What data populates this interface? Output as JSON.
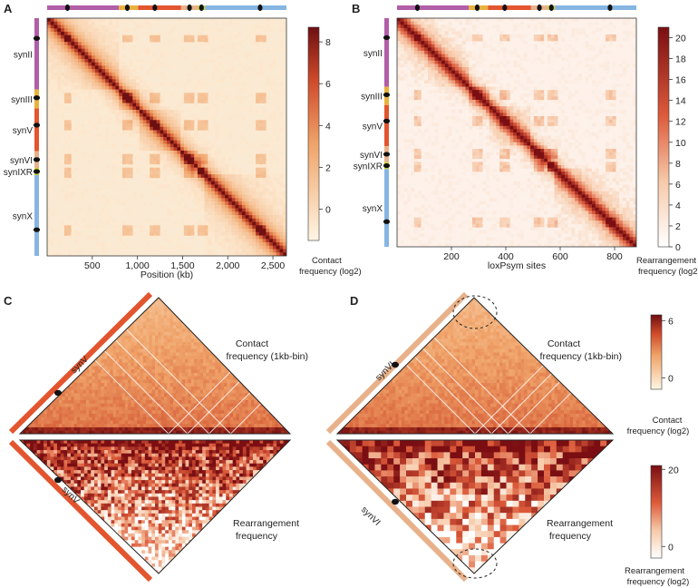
{
  "colors": {
    "synII": "#b15ea8",
    "synIII": "#e8b23c",
    "synV": "#e2552f",
    "synVI": "#e8b18a",
    "synIXR": "#c7d22f",
    "synX": "#85b6e2",
    "heat_low": "#fff4df",
    "heat_mid": "#ec8a4c",
    "heat_high": "#8c1414"
  },
  "chart_data": [
    {
      "panel": "A",
      "type": "heatmap",
      "xlabel": "Position (kb)",
      "x_ticks": [
        "500",
        "1,000",
        "1,500",
        "2,000",
        "2,500"
      ],
      "x_tick_values": [
        500,
        1000,
        1500,
        2000,
        2500
      ],
      "xlim": [
        0,
        2650
      ],
      "chromosomes": [
        "synII",
        "synIII",
        "synV",
        "synVI",
        "synIXR",
        "synX"
      ],
      "colorbar_label": "Contact frequency (log2)",
      "colorbar_ticks": [
        "8",
        "6",
        "4",
        "2",
        "0"
      ],
      "colorbar_values": [
        8,
        6,
        4,
        2,
        0
      ],
      "colorbar_range": [
        -1.5,
        8.7
      ]
    },
    {
      "panel": "B",
      "type": "heatmap",
      "xlabel": "loxPsym sites",
      "x_ticks": [
        "200",
        "400",
        "600",
        "800"
      ],
      "x_tick_values": [
        200,
        400,
        600,
        800
      ],
      "xlim": [
        0,
        880
      ],
      "chromosomes": [
        "synII",
        "synIII",
        "synV",
        "synVI",
        "synIXR",
        "synX"
      ],
      "colorbar_label": "Rearrangement frequency (log2)",
      "colorbar_ticks": [
        "20",
        "18",
        "16",
        "14",
        "12",
        "10",
        "8",
        "6",
        "4",
        "2",
        "0"
      ],
      "colorbar_values": [
        20,
        18,
        16,
        14,
        12,
        10,
        8,
        6,
        4,
        2,
        0
      ],
      "colorbar_range": [
        0,
        21
      ]
    },
    {
      "panel": "C",
      "type": "heatmap",
      "chromosome": "synV",
      "upper_label_1": "Contact",
      "upper_label_2": "frequency (1kb-bin)",
      "lower_label_1": "Rearrangement",
      "lower_label_2": "frequency"
    },
    {
      "panel": "D",
      "type": "heatmap",
      "chromosome": "synVI",
      "upper_label_1": "Contact",
      "upper_label_2": "frequency (1kb-bin)",
      "lower_label_1": "Rearrangement",
      "lower_label_2": "frequency",
      "colorbar_contact_ticks": [
        "6",
        "0"
      ],
      "colorbar_contact_values": [
        6,
        0
      ],
      "colorbar_contact_label_1": "Contact",
      "colorbar_contact_label_2": "frequency (log2)",
      "colorbar_rearr_ticks": [
        "20",
        "0"
      ],
      "colorbar_rearr_values": [
        20,
        0
      ],
      "colorbar_rearr_label_1": "Rearrangement",
      "colorbar_rearr_label_2": "frequency (log2)"
    }
  ]
}
